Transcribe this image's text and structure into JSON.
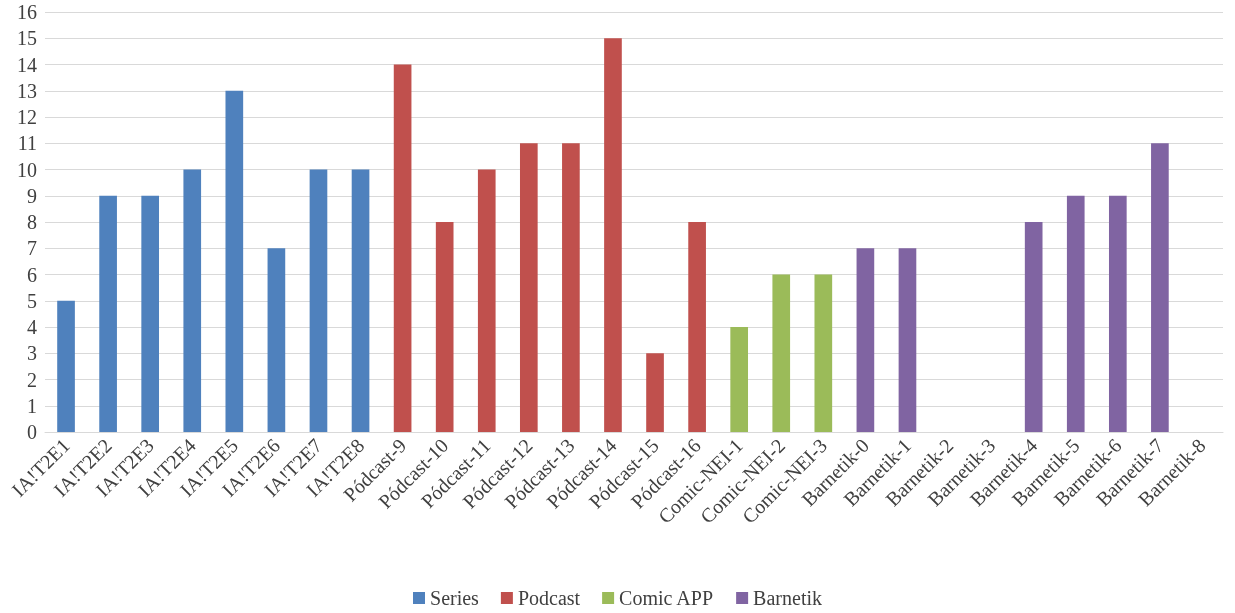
{
  "chart_data": {
    "type": "bar",
    "categories": [
      "IA!T2E1",
      "IA!T2E2",
      "IA!T2E3",
      "IA!T2E4",
      "IA!T2E5",
      "IA!T2E6",
      "IA!T2E7",
      "IA!T2E8",
      "Pódcast-9",
      "Pódcast-10",
      "Pódcast-11",
      "Pódcast-12",
      "Pódcast-13",
      "Pódcast-14",
      "Pódcast-15",
      "Pódcast-16",
      "Comic-NEI-1",
      "Comic-NEI-2",
      "Comic-NEI-3",
      "Barnetik-0",
      "Barnetik-1",
      "Barnetik-2",
      "Barnetik-3",
      "Barnetik-4",
      "Barnetik-5",
      "Barnetik-6",
      "Barnetik-7",
      "Barnetik-8"
    ],
    "series": [
      {
        "name": "Series",
        "color": "#4f81bd",
        "values": [
          5,
          9,
          9,
          10,
          13,
          7,
          10,
          10,
          null,
          null,
          null,
          null,
          null,
          null,
          null,
          null,
          null,
          null,
          null,
          null,
          null,
          null,
          null,
          null,
          null,
          null,
          null,
          null
        ]
      },
      {
        "name": "Podcast",
        "color": "#c0504d",
        "values": [
          null,
          null,
          null,
          null,
          null,
          null,
          null,
          null,
          14,
          8,
          10,
          11,
          11,
          15,
          3,
          8,
          null,
          null,
          null,
          null,
          null,
          null,
          null,
          null,
          null,
          null,
          null,
          null
        ]
      },
      {
        "name": "Comic APP",
        "color": "#9bbb59",
        "values": [
          null,
          null,
          null,
          null,
          null,
          null,
          null,
          null,
          null,
          null,
          null,
          null,
          null,
          null,
          null,
          null,
          4,
          6,
          6,
          null,
          null,
          null,
          null,
          null,
          null,
          null,
          null,
          null
        ]
      },
      {
        "name": "Barnetik",
        "color": "#8064a2",
        "values": [
          null,
          null,
          null,
          null,
          null,
          null,
          null,
          null,
          null,
          null,
          null,
          null,
          null,
          null,
          null,
          null,
          null,
          null,
          null,
          7,
          7,
          null,
          null,
          8,
          9,
          9,
          11,
          null
        ]
      }
    ],
    "ylim": [
      0,
      16
    ],
    "yticks": [
      0,
      1,
      2,
      3,
      4,
      5,
      6,
      7,
      8,
      9,
      10,
      11,
      12,
      13,
      14,
      15,
      16
    ],
    "grid": "y",
    "legend": "bottom"
  }
}
